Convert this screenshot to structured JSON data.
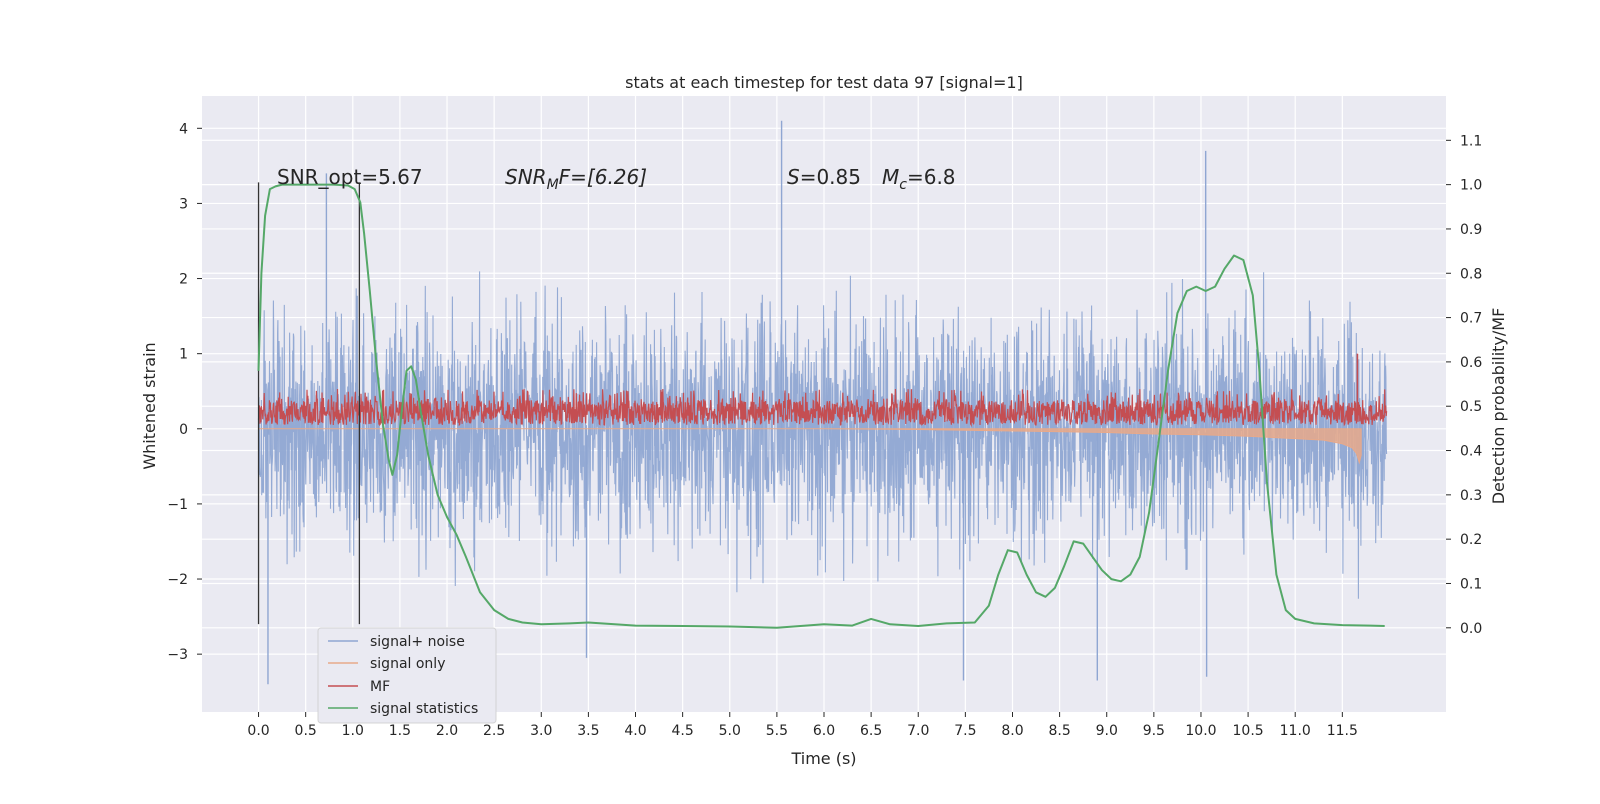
{
  "chart_data": {
    "type": "line",
    "title": "stats at each timestep for test data 97 [signal=1]",
    "xlabel": "Time (s)",
    "ylabel": "Whitened strain",
    "y2label": "Detection probability/MF",
    "xlim": [
      -0.6,
      12.6
    ],
    "ylim": [
      -3.77,
      4.43
    ],
    "y2lim": [
      -0.19,
      1.2
    ],
    "x_ticks": [
      "0.0",
      "0.5",
      "1.0",
      "1.5",
      "2.0",
      "2.5",
      "3.0",
      "3.5",
      "4.0",
      "4.5",
      "5.0",
      "5.5",
      "6.0",
      "6.5",
      "7.0",
      "7.5",
      "8.0",
      "8.5",
      "9.0",
      "9.5",
      "10.0",
      "10.5",
      "11.0",
      "11.5"
    ],
    "y_ticks": [
      "4",
      "3",
      "2",
      "1",
      "0",
      "−1",
      "−2",
      "−3"
    ],
    "y2_ticks": [
      "1.1",
      "1.0",
      "0.9",
      "0.8",
      "0.7",
      "0.6",
      "0.5",
      "0.4",
      "0.3",
      "0.2",
      "0.1",
      "0.0"
    ],
    "grid": true,
    "legend_position": "lower-left",
    "annotations": {
      "snr_opt": "SNR_opt=5.67",
      "snr_mf_sym": "SNR",
      "snr_mf_sub": "M",
      "snr_mf_rest": "F=[6.26]",
      "s_sym": "S",
      "s_val": "=0.85",
      "mc_sym": "M",
      "mc_sub": "c",
      "mc_val": "=6.8"
    },
    "vlines": [
      0.0,
      1.07
    ],
    "series": [
      {
        "name": "signal+ noise",
        "color": "#8fa6d2",
        "axis": "left",
        "style": "noise",
        "x_range": [
          0.0,
          11.97
        ],
        "envelope_upper": 2.0,
        "envelope_lower": -2.0,
        "spikes": [
          {
            "x": 0.72,
            "y": 3.4
          },
          {
            "x": 5.55,
            "y": 4.1
          },
          {
            "x": 10.05,
            "y": 3.7
          },
          {
            "x": 0.1,
            "y": -3.4
          },
          {
            "x": 3.48,
            "y": -3.05
          },
          {
            "x": 7.48,
            "y": -3.35
          },
          {
            "x": 8.9,
            "y": -3.35
          },
          {
            "x": 10.06,
            "y": -3.3
          }
        ]
      },
      {
        "name": "signal only",
        "color": "#e8a98a",
        "axis": "left",
        "x": [
          0.0,
          6.0,
          7.0,
          8.0,
          9.0,
          9.5,
          10.0,
          10.5,
          11.0,
          11.3,
          11.5,
          11.6,
          11.65,
          11.68,
          11.7
        ],
        "y": [
          0.0,
          0.0,
          -0.01,
          -0.03,
          -0.05,
          -0.07,
          -0.08,
          -0.1,
          -0.13,
          -0.15,
          -0.2,
          -0.25,
          -0.33,
          -0.45,
          -0.35
        ]
      },
      {
        "name": "MF",
        "color": "#c44e52",
        "axis": "left",
        "style": "noise-band",
        "x_range": [
          0.0,
          11.97
        ],
        "band": [
          0.05,
          0.38
        ],
        "spikes": [
          {
            "x": 11.66,
            "y": 1.0
          }
        ]
      },
      {
        "name": "signal statistics",
        "color": "#55a868",
        "axis": "right",
        "x": [
          0.0,
          0.03,
          0.07,
          0.12,
          0.18,
          0.25,
          0.4,
          0.6,
          0.8,
          0.95,
          1.02,
          1.08,
          1.12,
          1.18,
          1.25,
          1.32,
          1.38,
          1.42,
          1.47,
          1.52,
          1.57,
          1.62,
          1.67,
          1.72,
          1.8,
          1.9,
          2.0,
          2.1,
          2.2,
          2.35,
          2.5,
          2.65,
          2.8,
          3.0,
          3.3,
          3.5,
          4.0,
          4.5,
          5.0,
          5.5,
          6.0,
          6.3,
          6.5,
          6.7,
          7.0,
          7.3,
          7.6,
          7.75,
          7.85,
          7.95,
          8.05,
          8.15,
          8.25,
          8.35,
          8.45,
          8.55,
          8.65,
          8.75,
          8.85,
          8.95,
          9.05,
          9.15,
          9.25,
          9.35,
          9.45,
          9.55,
          9.65,
          9.75,
          9.85,
          9.95,
          10.05,
          10.15,
          10.25,
          10.35,
          10.45,
          10.55,
          10.62,
          10.7,
          10.8,
          10.9,
          11.0,
          11.2,
          11.5,
          11.8,
          11.95
        ],
        "y": [
          0.58,
          0.8,
          0.93,
          0.99,
          0.996,
          1.0,
          1.0,
          1.0,
          1.0,
          0.998,
          0.99,
          0.96,
          0.89,
          0.76,
          0.6,
          0.46,
          0.38,
          0.345,
          0.39,
          0.49,
          0.58,
          0.59,
          0.56,
          0.49,
          0.39,
          0.3,
          0.25,
          0.21,
          0.16,
          0.08,
          0.04,
          0.02,
          0.012,
          0.008,
          0.01,
          0.012,
          0.005,
          0.004,
          0.003,
          0.0,
          0.008,
          0.005,
          0.02,
          0.008,
          0.004,
          0.01,
          0.012,
          0.05,
          0.12,
          0.175,
          0.17,
          0.12,
          0.08,
          0.07,
          0.09,
          0.14,
          0.195,
          0.19,
          0.16,
          0.13,
          0.11,
          0.105,
          0.12,
          0.16,
          0.26,
          0.42,
          0.58,
          0.71,
          0.76,
          0.77,
          0.76,
          0.77,
          0.81,
          0.84,
          0.83,
          0.75,
          0.58,
          0.33,
          0.12,
          0.04,
          0.02,
          0.01,
          0.006,
          0.005,
          0.004
        ]
      }
    ]
  }
}
